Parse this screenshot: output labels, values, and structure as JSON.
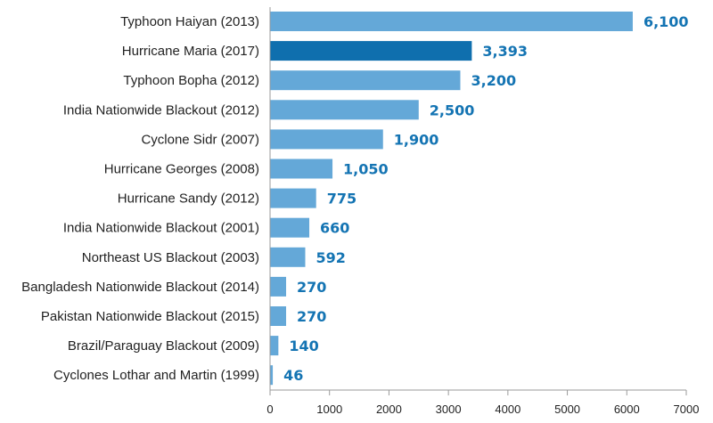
{
  "chart_data": {
    "type": "bar",
    "orientation": "horizontal",
    "categories": [
      "Typhoon Haiyan (2013)",
      "Hurricane Maria (2017)",
      "Typhoon Bopha (2012)",
      "India Nationwide Blackout (2012)",
      "Cyclone Sidr (2007)",
      "Hurricane Georges (2008)",
      "Hurricane Sandy (2012)",
      "India Nationwide Blackout (2001)",
      "Northeast US Blackout (2003)",
      "Bangladesh Nationwide Blackout (2014)",
      "Pakistan Nationwide Blackout (2015)",
      "Brazil/Paraguay Blackout (2009)",
      "Cyclones Lothar and Martin (1999)"
    ],
    "values": [
      6100,
      3393,
      3200,
      2500,
      1900,
      1050,
      775,
      660,
      592,
      270,
      270,
      140,
      46
    ],
    "value_labels": [
      "6,100",
      "3,393",
      "3,200",
      "2,500",
      "1,900",
      "1,050",
      "775",
      "660",
      "592",
      "270",
      "270",
      "140",
      "46"
    ],
    "highlighted_category": "Hurricane Maria (2017)",
    "x_ticks": [
      0,
      1000,
      2000,
      3000,
      4000,
      5000,
      6000,
      7000
    ],
    "x_tick_labels": [
      "0",
      "1000",
      "2000",
      "3000",
      "4000",
      "5000",
      "6000",
      "7000"
    ],
    "xlim": [
      0,
      7000
    ],
    "title": "",
    "xlabel": "",
    "ylabel": "",
    "grid": false,
    "legend": "none",
    "colors": {
      "bar": "#64a8d8",
      "highlight": "#0f6fae",
      "value_label": "#1474b3",
      "axis": "#9a9a9a",
      "category_text": "#222222"
    }
  }
}
